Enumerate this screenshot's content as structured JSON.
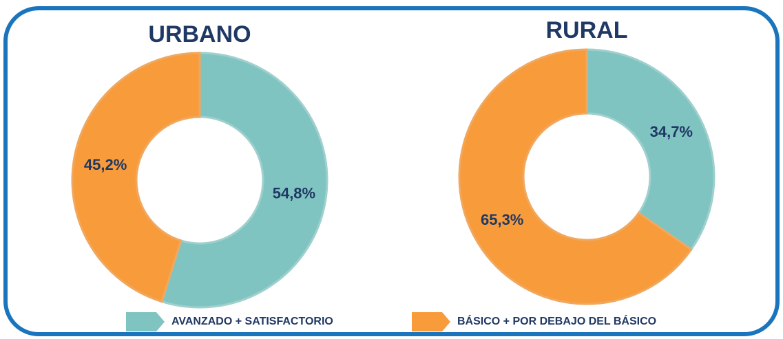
{
  "chart_data": [
    {
      "type": "donut",
      "title": "URBANO",
      "categories": [
        "AVANZADO + SATISFACTORIO",
        "BÁSICO + POR DEBAJO DEL BÁSICO"
      ],
      "values": [
        54.8,
        45.2
      ],
      "value_labels": [
        "54,8%",
        "45,2%"
      ],
      "colors": [
        "#80c4c1",
        "#f89b3a"
      ]
    },
    {
      "type": "donut",
      "title": "RURAL",
      "categories": [
        "AVANZADO + SATISFACTORIO",
        "BÁSICO + POR DEBAJO DEL BÁSICO"
      ],
      "values": [
        34.7,
        65.3
      ],
      "value_labels": [
        "34,7%",
        "65,3%"
      ],
      "colors": [
        "#80c4c1",
        "#f89b3a"
      ]
    }
  ]
}
